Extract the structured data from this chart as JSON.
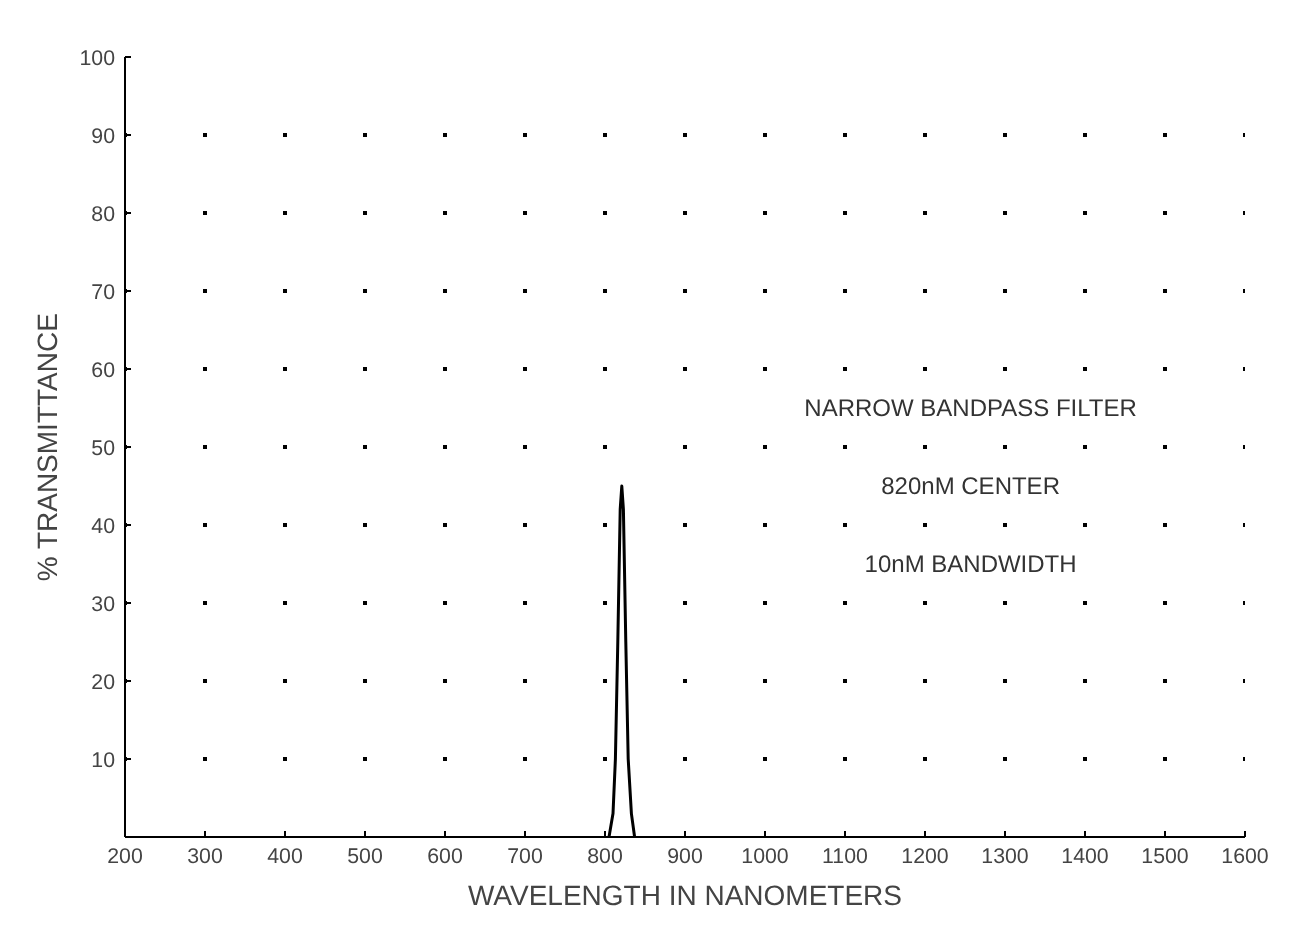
{
  "chart_data": {
    "type": "line",
    "xlabel": "WAVELENGTH IN NANOMETERS",
    "ylabel": "% TRANSMITTANCE",
    "annotations": [
      "NARROW BANDPASS FILTER",
      "820nM CENTER",
      "10nM BANDWIDTH"
    ],
    "x": [
      805,
      810,
      813,
      816,
      819,
      821,
      823,
      826,
      829,
      833,
      837
    ],
    "series": [
      {
        "color": "#000000",
        "values": [
          0,
          3,
          10,
          25,
          42,
          45,
          42,
          25,
          10,
          3,
          0
        ]
      }
    ],
    "xlim": [
      200,
      1600
    ],
    "ylim": [
      0,
      100
    ],
    "xticks": [
      200,
      300,
      400,
      500,
      600,
      700,
      800,
      900,
      1000,
      1100,
      1200,
      1300,
      1400,
      1500,
      1600
    ],
    "yticks": [
      10,
      20,
      30,
      40,
      50,
      60,
      70,
      80,
      90,
      100
    ],
    "grid": true,
    "marker": "none",
    "line_style": "solid"
  }
}
